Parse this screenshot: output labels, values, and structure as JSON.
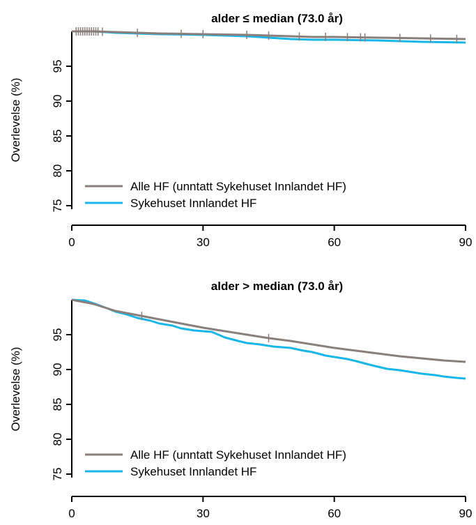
{
  "colors": {
    "all_hf": "#8a7f7a",
    "innlandet": "#19b6e8",
    "axis": "#000000"
  },
  "chart_data": [
    {
      "type": "line",
      "title": "alder ≤ median (73.0 år)",
      "xlabel": "",
      "ylabel": "Overlevelse (%)",
      "xlim": [
        0,
        90
      ],
      "ylim": [
        74.5,
        100
      ],
      "xticks": [
        "0",
        "30",
        "60",
        "90"
      ],
      "yticks": [
        "75",
        "80",
        "85",
        "90",
        "95"
      ],
      "grid": false,
      "legend_position": "bottom-left",
      "series": [
        {
          "name": "Alle HF (unntatt Sykehuset Innlandet HF)",
          "color_key": "all_hf",
          "x": [
            0,
            5,
            10,
            15,
            20,
            30,
            40,
            45,
            50,
            55,
            60,
            70,
            80,
            90
          ],
          "y": [
            100,
            100,
            99.9,
            99.8,
            99.7,
            99.6,
            99.5,
            99.4,
            99.3,
            99.2,
            99.2,
            99.1,
            99.0,
            98.9
          ],
          "censor_x": [
            1,
            1.5,
            2,
            2.5,
            3,
            3.5,
            4,
            4.5,
            5,
            5.5,
            6,
            7,
            15,
            25,
            30,
            40,
            45,
            52,
            58,
            63,
            66,
            67,
            75,
            82,
            88
          ]
        },
        {
          "name": "Sykehuset Innlandet HF",
          "color_key": "innlandet",
          "x": [
            0,
            5,
            10,
            20,
            30,
            40,
            45,
            50,
            55,
            60,
            70,
            80,
            90
          ],
          "y": [
            100,
            100,
            99.8,
            99.6,
            99.5,
            99.3,
            99.1,
            98.9,
            98.8,
            98.8,
            98.7,
            98.5,
            98.4
          ],
          "censor_x": []
        }
      ]
    },
    {
      "type": "line",
      "title": "alder > median (73.0 år)",
      "xlabel": "",
      "ylabel": "Overlevelse (%)",
      "xlim": [
        0,
        90
      ],
      "ylim": [
        74.5,
        100
      ],
      "xticks": [
        "0",
        "30",
        "60",
        "90"
      ],
      "yticks": [
        "75",
        "80",
        "85",
        "90",
        "95"
      ],
      "grid": false,
      "legend_position": "bottom-left",
      "series": [
        {
          "name": "Alle HF (unntatt Sykehuset Innlandet HF)",
          "color_key": "all_hf",
          "x": [
            0,
            5,
            10,
            15,
            20,
            25,
            30,
            35,
            40,
            45,
            50,
            55,
            60,
            65,
            70,
            75,
            80,
            85,
            90
          ],
          "y": [
            100,
            99.4,
            98.4,
            97.8,
            97.2,
            96.6,
            96.0,
            95.5,
            95.0,
            94.5,
            94.1,
            93.6,
            93.1,
            92.7,
            92.3,
            91.9,
            91.6,
            91.3,
            91.1
          ],
          "censor_x": [
            16,
            45
          ]
        },
        {
          "name": "Sykehuset Innlandet HF",
          "color_key": "innlandet",
          "x": [
            0,
            3,
            5,
            8,
            10,
            12,
            15,
            18,
            20,
            23,
            25,
            28,
            32,
            35,
            38,
            40,
            43,
            46,
            50,
            53,
            55,
            58,
            60,
            63,
            65,
            68,
            70,
            72,
            75,
            78,
            80,
            83,
            85,
            88,
            90
          ],
          "y": [
            100,
            99.9,
            99.5,
            98.8,
            98.3,
            98.0,
            97.4,
            97.0,
            96.6,
            96.3,
            95.9,
            95.6,
            95.4,
            94.6,
            94.1,
            93.8,
            93.6,
            93.3,
            93.1,
            92.7,
            92.5,
            92.0,
            91.8,
            91.5,
            91.2,
            90.7,
            90.4,
            90.1,
            89.9,
            89.6,
            89.4,
            89.2,
            89.0,
            88.8,
            88.7
          ],
          "censor_x": []
        }
      ]
    }
  ]
}
